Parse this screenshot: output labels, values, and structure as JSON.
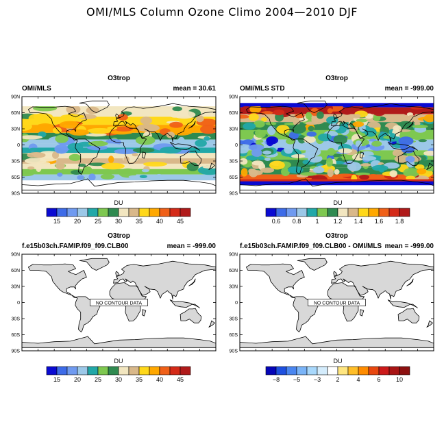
{
  "page": {
    "title": "OMI/MLS Column Ozone Climo 2004—2010 DJF"
  },
  "panels": [
    {
      "id": "p1",
      "variable": "O3trop",
      "left_label": "OMI/MLS",
      "right_label": "mean =  30.61",
      "fill": "ozone",
      "no_data": false,
      "colorbar": "ozone"
    },
    {
      "id": "p2",
      "variable": "O3trop",
      "left_label": "OMI/MLS STD",
      "right_label": "mean = -999.00",
      "fill": "std",
      "no_data": false,
      "colorbar": "std"
    },
    {
      "id": "p3",
      "variable": "O3trop",
      "left_label": "f.e15b03ch.FAMIP.f09_f09.CLB00",
      "right_label": "mean = -999.00",
      "fill": "none",
      "no_data": true,
      "no_data_text": "NO CONTOUR DATA",
      "colorbar": "ozone"
    },
    {
      "id": "p4",
      "variable": "O3trop",
      "left_label": "f.e15b03ch.FAMIP.f09_f09.CLB00 - OMI/MLS",
      "right_label": "mean = -999.00",
      "fill": "none",
      "no_data": true,
      "no_data_text": "NO CONTOUR DATA",
      "colorbar": "diff"
    }
  ],
  "axes": {
    "lat_ticks": [
      "90N",
      "60N",
      "30N",
      "0",
      "30S",
      "60S",
      "90S"
    ]
  },
  "colorbars": {
    "ozone": {
      "units": "DU",
      "labels": [
        "15",
        "20",
        "25",
        "30",
        "35",
        "40",
        "45"
      ],
      "colors": [
        "#0a0ad2",
        "#3d6be8",
        "#6f9af0",
        "#9cc8e8",
        "#22a8a8",
        "#7ec850",
        "#2f8a50",
        "#f2e6c0",
        "#d9b88a",
        "#ffd81a",
        "#ffa800",
        "#f06018",
        "#d42a18",
        "#b01a1a"
      ]
    },
    "std": {
      "units": "DU",
      "labels": [
        "0.6",
        "0.8",
        "1",
        "1.2",
        "1.4",
        "1.6",
        "1.8"
      ],
      "colors": [
        "#0a0ad2",
        "#3d6be8",
        "#6f9af0",
        "#9cc8e8",
        "#22a8a8",
        "#7ec850",
        "#2f8a50",
        "#f2e6c0",
        "#d9b88a",
        "#ffd81a",
        "#ffa800",
        "#f06018",
        "#d42a18",
        "#b01a1a"
      ]
    },
    "diff": {
      "units": "DU",
      "labels": [
        "−8",
        "−5",
        "−3",
        "2",
        "4",
        "6",
        "10"
      ],
      "colors": [
        "#0505b8",
        "#1e50e0",
        "#4a86f0",
        "#7ab4f8",
        "#a8d8fc",
        "#d4ecfc",
        "#ffffff",
        "#ffe680",
        "#ffbe28",
        "#ff8c00",
        "#e84810",
        "#cc1a1a",
        "#a81414",
        "#8c1010"
      ]
    }
  },
  "chart_data": [
    {
      "type": "heatmap",
      "title": "O3trop",
      "subtitle_left": "OMI/MLS",
      "subtitle_right": "mean =  30.61",
      "x": "longitude",
      "y": "latitude",
      "ylim": [
        -90,
        90
      ],
      "units": "DU",
      "zonal_mean_profile": [
        {
          "lat": 70,
          "value": 30
        },
        {
          "lat": 60,
          "value": 32
        },
        {
          "lat": 45,
          "value": 36
        },
        {
          "lat": 30,
          "value": 38
        },
        {
          "lat": 15,
          "value": 28
        },
        {
          "lat": 5,
          "value": 22
        },
        {
          "lat": 0,
          "value": 21
        },
        {
          "lat": -10,
          "value": 24
        },
        {
          "lat": -20,
          "value": 30
        },
        {
          "lat": -30,
          "value": 33
        },
        {
          "lat": -40,
          "value": 31
        },
        {
          "lat": -50,
          "value": 26
        },
        {
          "lat": -60,
          "value": 22
        }
      ]
    },
    {
      "type": "heatmap",
      "title": "O3trop",
      "subtitle_left": "OMI/MLS STD",
      "subtitle_right": "mean = -999.00",
      "x": "longitude",
      "y": "latitude",
      "ylim": [
        -90,
        90
      ],
      "units": "DU",
      "zonal_mean_profile": [
        {
          "lat": 75,
          "value": 0.5
        },
        {
          "lat": 65,
          "value": 1.8
        },
        {
          "lat": 50,
          "value": 1.3
        },
        {
          "lat": 35,
          "value": 1.2
        },
        {
          "lat": 20,
          "value": 1.0
        },
        {
          "lat": 0,
          "value": 0.8
        },
        {
          "lat": -20,
          "value": 1.0
        },
        {
          "lat": -35,
          "value": 1.1
        },
        {
          "lat": -50,
          "value": 1.2
        },
        {
          "lat": -60,
          "value": 1.7
        },
        {
          "lat": -70,
          "value": 0.5
        }
      ]
    },
    {
      "type": "heatmap",
      "title": "O3trop",
      "subtitle_left": "f.e15b03ch.FAMIP.f09_f09.CLB00",
      "subtitle_right": "mean = -999.00",
      "ylim": [
        -90,
        90
      ],
      "units": "DU",
      "annotation": "NO CONTOUR DATA"
    },
    {
      "type": "heatmap",
      "title": "O3trop",
      "subtitle_left": "f.e15b03ch.FAMIP.f09_f09.CLB00 - OMI/MLS",
      "subtitle_right": "mean = -999.00",
      "ylim": [
        -90,
        90
      ],
      "units": "DU",
      "annotation": "NO CONTOUR DATA"
    }
  ]
}
